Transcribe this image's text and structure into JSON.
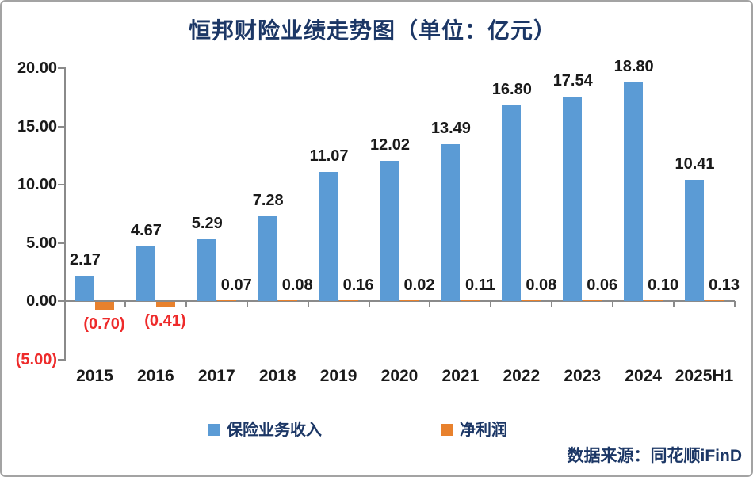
{
  "chart": {
    "title": "恒邦财险业绩走势图（单位：亿元）",
    "source": "数据来源：同花顺iFinD"
  },
  "chart_data": {
    "type": "bar",
    "title": "恒邦财险业绩走势图（单位：亿元）",
    "unit": "亿元",
    "categories": [
      "2015",
      "2016",
      "2017",
      "2018",
      "2019",
      "2020",
      "2021",
      "2022",
      "2023",
      "2024",
      "2025H1"
    ],
    "series": [
      {
        "name": "保险业务收入",
        "color": "#5b9bd5",
        "values": [
          2.17,
          4.67,
          5.29,
          7.28,
          11.07,
          12.02,
          13.49,
          16.8,
          17.54,
          18.8,
          10.41
        ],
        "labels": [
          "2.17",
          "4.67",
          "5.29",
          "7.28",
          "11.07",
          "12.02",
          "13.49",
          "16.80",
          "17.54",
          "18.80",
          "10.41"
        ]
      },
      {
        "name": "净利润",
        "color": "#e8812d",
        "values": [
          -0.7,
          -0.41,
          0.07,
          0.08,
          0.16,
          0.02,
          0.11,
          0.08,
          0.06,
          0.1,
          0.13
        ],
        "labels": [
          "(0.70)",
          "(0.41)",
          "0.07",
          "0.08",
          "0.16",
          "0.02",
          "0.11",
          "0.08",
          "0.06",
          "0.10",
          "0.13"
        ]
      }
    ],
    "y_ticks": [
      "20.00",
      "15.00",
      "10.00",
      "5.00",
      "0.00",
      "(5.00)"
    ],
    "y_tick_values": [
      20,
      15,
      10,
      5,
      0,
      -5
    ],
    "ylim": [
      -5,
      20
    ],
    "xlabel": "",
    "ylabel": "",
    "grid": false,
    "legend_position": "bottom",
    "negative_label_color": "#ee2b2b",
    "axis_color": "#8a8a8a",
    "text_color": "#1a1a1a",
    "title_color": "#1c3766"
  }
}
